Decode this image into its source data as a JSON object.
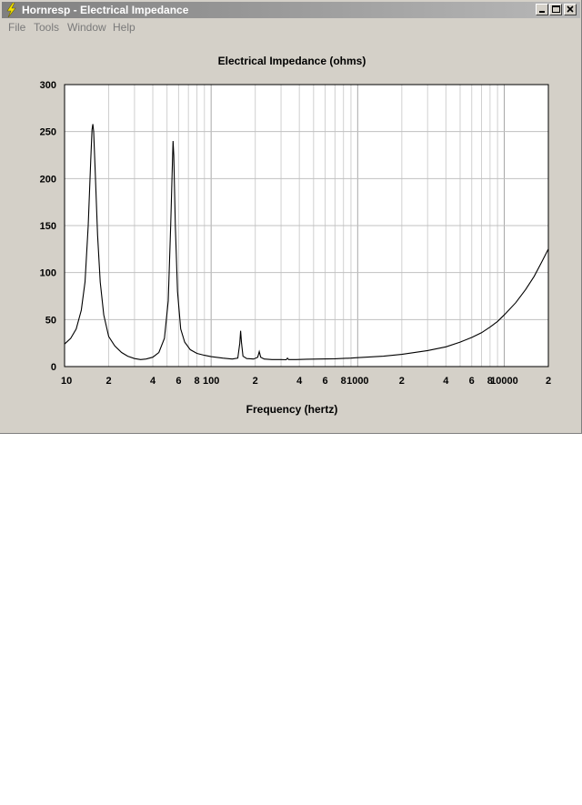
{
  "window": {
    "title": "Hornresp - Electrical Impedance",
    "icon": "lightning-icon"
  },
  "menu": {
    "items": [
      "File",
      "Tools",
      "Window",
      "Help"
    ]
  },
  "chart_data": {
    "type": "line",
    "title": "Electrical Impedance (ohms)",
    "xlabel": "Frequency (hertz)",
    "ylabel": "",
    "xscale": "log",
    "xlim": [
      10,
      20000
    ],
    "ylim": [
      0,
      300
    ],
    "grid": true,
    "legend": "none",
    "line_color": "#000000",
    "y_ticks": [
      "0",
      "50",
      "100",
      "150",
      "200",
      "250",
      "300"
    ],
    "x_ticks": [
      {
        "value": 10,
        "label": "10"
      },
      {
        "value": 20,
        "label": "2"
      },
      {
        "value": 40,
        "label": "4"
      },
      {
        "value": 60,
        "label": "6"
      },
      {
        "value": 80,
        "label": "8"
      },
      {
        "value": 100,
        "label": "100"
      },
      {
        "value": 200,
        "label": "2"
      },
      {
        "value": 400,
        "label": "4"
      },
      {
        "value": 600,
        "label": "6"
      },
      {
        "value": 800,
        "label": "8"
      },
      {
        "value": 1000,
        "label": "1000"
      },
      {
        "value": 2000,
        "label": "2"
      },
      {
        "value": 4000,
        "label": "4"
      },
      {
        "value": 6000,
        "label": "6"
      },
      {
        "value": 8000,
        "label": "8"
      },
      {
        "value": 10000,
        "label": "10000"
      },
      {
        "value": 20000,
        "label": "2"
      }
    ],
    "series": [
      {
        "points": [
          [
            10,
            24
          ],
          [
            11,
            30
          ],
          [
            12,
            40
          ],
          [
            13,
            60
          ],
          [
            13.8,
            90
          ],
          [
            14.5,
            150
          ],
          [
            15.1,
            220
          ],
          [
            15.4,
            252
          ],
          [
            15.6,
            258
          ],
          [
            15.8,
            250
          ],
          [
            16.2,
            205
          ],
          [
            16.8,
            140
          ],
          [
            17.5,
            90
          ],
          [
            18.5,
            55
          ],
          [
            20,
            32
          ],
          [
            22,
            22
          ],
          [
            24.5,
            15
          ],
          [
            27,
            11
          ],
          [
            30,
            8.5
          ],
          [
            33,
            7.5
          ],
          [
            36,
            8
          ],
          [
            40,
            10
          ],
          [
            44,
            15
          ],
          [
            48,
            30
          ],
          [
            51,
            70
          ],
          [
            53,
            150
          ],
          [
            54.5,
            220
          ],
          [
            55,
            240
          ],
          [
            55.6,
            225
          ],
          [
            57,
            150
          ],
          [
            59,
            80
          ],
          [
            62,
            40
          ],
          [
            66,
            26
          ],
          [
            72,
            18
          ],
          [
            80,
            14
          ],
          [
            90,
            12
          ],
          [
            100,
            10.5
          ],
          [
            120,
            9
          ],
          [
            140,
            8
          ],
          [
            152,
            9
          ],
          [
            157,
            25
          ],
          [
            159,
            38
          ],
          [
            161,
            26
          ],
          [
            165,
            11
          ],
          [
            175,
            8.5
          ],
          [
            195,
            8
          ],
          [
            208,
            10
          ],
          [
            213,
            16
          ],
          [
            218,
            10
          ],
          [
            230,
            8
          ],
          [
            260,
            7.5
          ],
          [
            300,
            7.5
          ],
          [
            325,
            7.3
          ],
          [
            332,
            9
          ],
          [
            338,
            7.5
          ],
          [
            380,
            7.5
          ],
          [
            450,
            7.8
          ],
          [
            550,
            8
          ],
          [
            700,
            8.3
          ],
          [
            900,
            9
          ],
          [
            1000,
            9.5
          ],
          [
            1500,
            11
          ],
          [
            2000,
            13
          ],
          [
            3000,
            17
          ],
          [
            4000,
            21
          ],
          [
            5000,
            26
          ],
          [
            6000,
            31
          ],
          [
            7000,
            36
          ],
          [
            8000,
            42
          ],
          [
            9000,
            48
          ],
          [
            10000,
            55
          ],
          [
            12000,
            68
          ],
          [
            14000,
            82
          ],
          [
            16000,
            96
          ],
          [
            18000,
            111
          ],
          [
            20000,
            125
          ]
        ]
      }
    ]
  }
}
